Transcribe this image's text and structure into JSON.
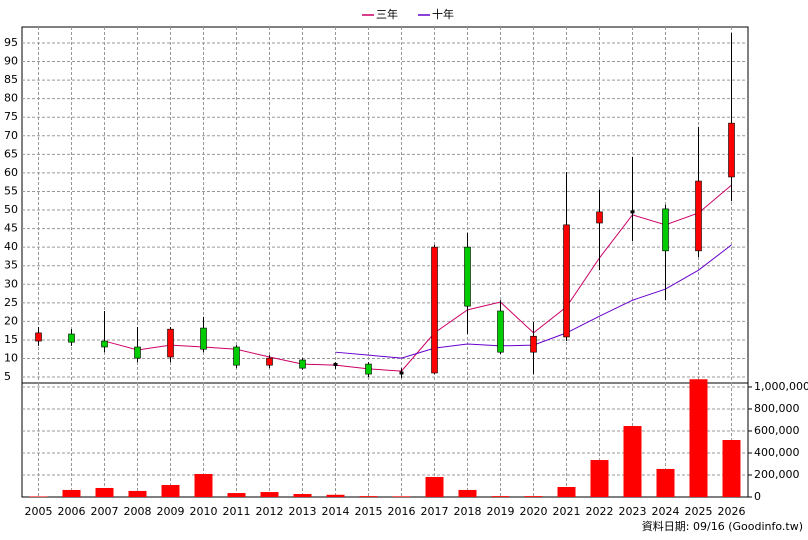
{
  "chart_data": {
    "type": "candlestick",
    "categories": [
      "2005",
      "2006",
      "2007",
      "2008",
      "2009",
      "2010",
      "2011",
      "2012",
      "2013",
      "2014",
      "2015",
      "2016",
      "2017",
      "2018",
      "2019",
      "2020",
      "2021",
      "2022",
      "2023",
      "2024",
      "2025",
      "2026"
    ],
    "open": [
      14.7,
      16.6,
      14.7,
      13.1,
      10.4,
      18.2,
      13.1,
      8.2,
      9.6,
      8.4,
      8.5,
      6.1,
      6.1,
      40.0,
      22.8,
      11.7,
      15.8,
      46.5,
      49.5,
      50.3,
      39.0,
      58.9
    ],
    "high": [
      18.5,
      17.9,
      22.8,
      18.5,
      18.5,
      21.2,
      13.6,
      10.9,
      10.1,
      9.0,
      9.0,
      7.4,
      40.6,
      43.8,
      25.7,
      19.8,
      60.2,
      55.4,
      64.3,
      51.4,
      72.4,
      97.7
    ],
    "low": [
      13.4,
      13.4,
      11.7,
      9.0,
      9.0,
      11.7,
      7.4,
      7.4,
      7.0,
      7.2,
      5.0,
      4.7,
      5.8,
      16.6,
      11.2,
      5.8,
      14.7,
      33.8,
      41.6,
      25.7,
      37.3,
      52.4
    ],
    "close": [
      16.9,
      14.4,
      13.1,
      10.1,
      17.9,
      12.5,
      8.2,
      10.1,
      7.4,
      8.4,
      5.8,
      6.1,
      40.0,
      24.1,
      11.7,
      16.0,
      46.0,
      49.5,
      49.5,
      39.0,
      57.8,
      73.4
    ],
    "up_color": "#ff0000",
    "down_color": "#00cc00",
    "flat_color": "#000000",
    "series": [
      {
        "name": "三年",
        "color": "#cc0066",
        "values": [
          null,
          null,
          14.7,
          12.3,
          13.6,
          13.1,
          12.5,
          10.4,
          8.5,
          8.2,
          7.2,
          6.6,
          16.9,
          23.1,
          25.2,
          16.9,
          23.9,
          37.1,
          48.7,
          46.0,
          49.2,
          56.7
        ]
      },
      {
        "name": "十年",
        "color": "#6600cc",
        "values": [
          null,
          null,
          null,
          null,
          null,
          null,
          null,
          null,
          null,
          11.7,
          10.9,
          10.1,
          12.8,
          13.9,
          13.4,
          13.6,
          16.9,
          21.4,
          25.7,
          28.7,
          33.8,
          40.6
        ]
      }
    ],
    "ylim": [
      3.4,
      99.3
    ],
    "yticks": [
      5,
      10,
      15,
      20,
      25,
      30,
      35,
      40,
      45,
      50,
      55,
      60,
      65,
      70,
      75,
      80,
      85,
      90,
      95
    ],
    "volume": {
      "color": "#ff0000",
      "values": [
        5000,
        64000,
        82000,
        55000,
        109000,
        209000,
        36000,
        45000,
        27000,
        20000,
        8000,
        6000,
        182000,
        64000,
        8000,
        8000,
        91000,
        336000,
        645000,
        255000,
        1070000,
        518000
      ],
      "ylim": [
        0,
        1036000
      ],
      "yticks": [
        0,
        {
          "value": 200000,
          "label": "200,000"
        },
        {
          "value": 400000,
          "label": "400,000"
        },
        {
          "value": 600000,
          "label": "600,000"
        },
        {
          "value": 800000,
          "label": "800,000"
        },
        {
          "value": 1000000,
          "label": "1,000,000"
        }
      ]
    },
    "grid": true,
    "footer": "資料日期: 09/16 (Goodinfo.tw)"
  }
}
